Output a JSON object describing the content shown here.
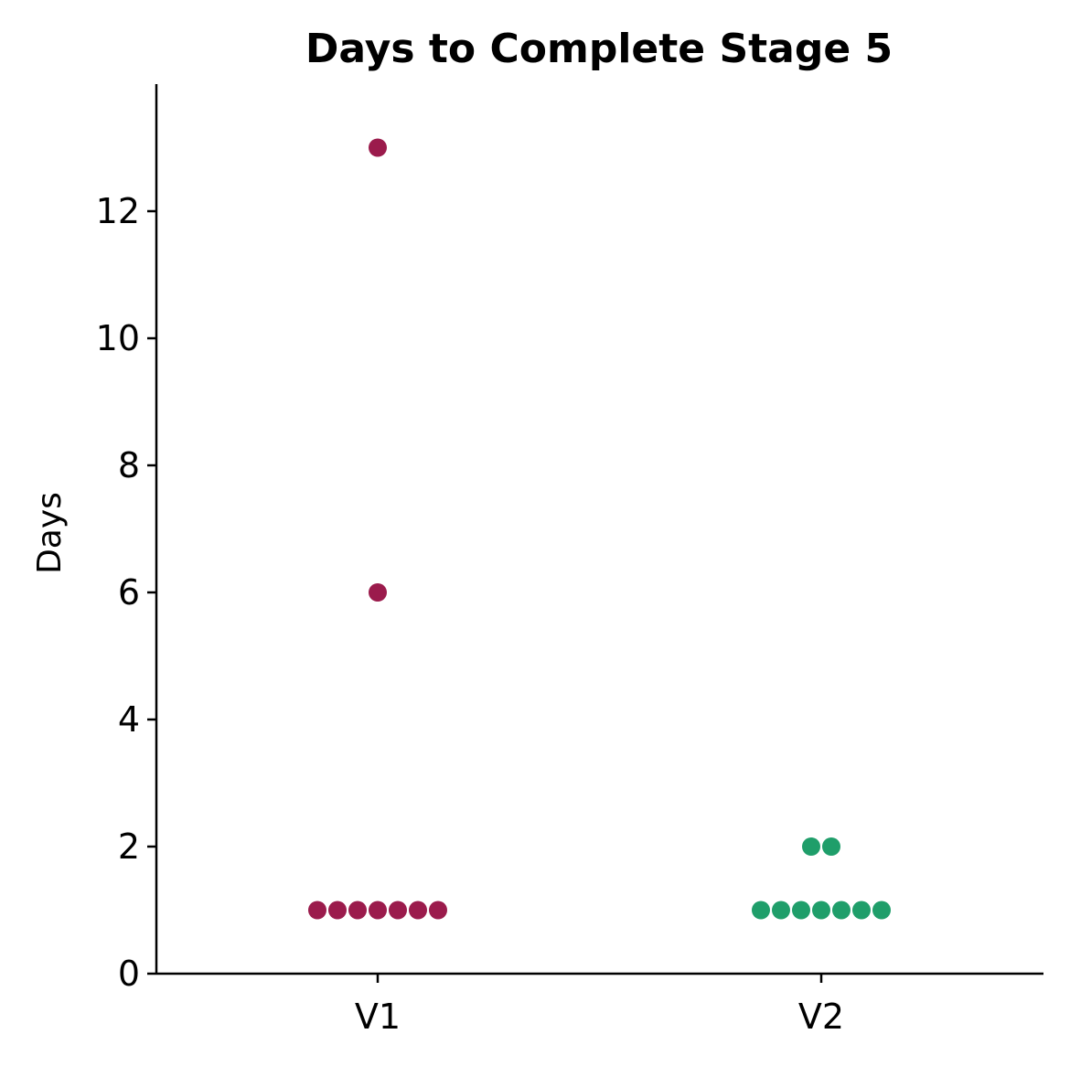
{
  "chart_data": {
    "type": "scatter",
    "subtype": "swarm",
    "title": "Days to Complete Stage 5",
    "xlabel": "",
    "ylabel": "Days",
    "categories": [
      "V1",
      "V2"
    ],
    "ylim": [
      0,
      14
    ],
    "yticks": [
      0,
      2,
      4,
      6,
      8,
      10,
      12
    ],
    "grid": false,
    "series": [
      {
        "category": "V1",
        "color": "#9b1b4c",
        "values": [
          1,
          1,
          1,
          1,
          1,
          1,
          1,
          6,
          13
        ]
      },
      {
        "category": "V2",
        "color": "#1f9e6a",
        "values": [
          1,
          1,
          1,
          1,
          1,
          1,
          1,
          2,
          2
        ]
      }
    ]
  }
}
